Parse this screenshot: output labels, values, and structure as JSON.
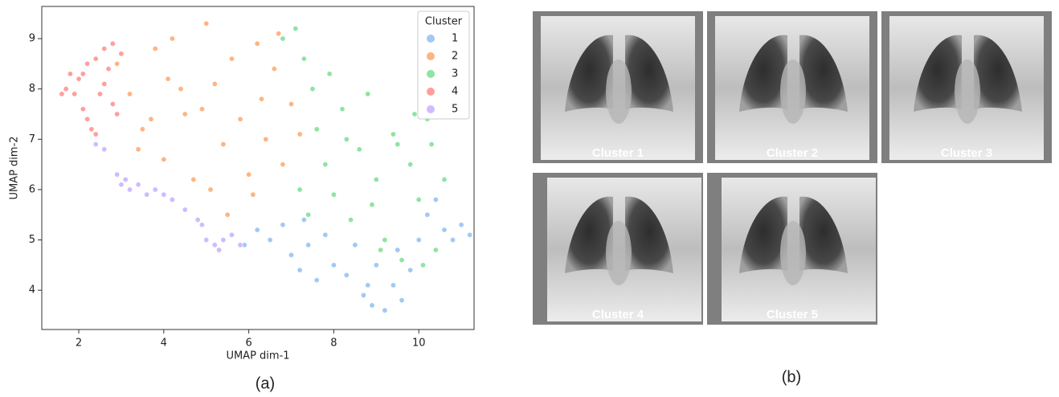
{
  "chart_data": {
    "type": "scatter",
    "xlabel": "UMAP dim-1",
    "ylabel": "UMAP dim-2",
    "xlim": [
      1.13,
      11.3
    ],
    "ylim": [
      3.22,
      9.64
    ],
    "xticks": [
      2,
      4,
      6,
      8,
      10
    ],
    "yticks": [
      4,
      5,
      6,
      7,
      8,
      9
    ],
    "grid": false,
    "legend": "upper right",
    "legend_title": "Cluster",
    "series": [
      {
        "name": "1",
        "color": "#a1c9f4",
        "x": [
          5.6,
          5.9,
          6.2,
          6.5,
          6.8,
          7.0,
          7.2,
          7.4,
          7.6,
          7.8,
          8.0,
          8.3,
          8.5,
          8.7,
          8.9,
          9.0,
          9.2,
          9.4,
          9.6,
          9.8,
          10.0,
          10.2,
          10.4,
          10.6,
          10.8,
          11.0,
          11.2,
          9.5,
          8.8,
          7.3
        ],
        "values": [
          5.1,
          4.9,
          5.2,
          5.0,
          5.3,
          4.7,
          4.4,
          4.9,
          4.2,
          5.1,
          4.5,
          4.3,
          4.9,
          3.9,
          3.7,
          4.5,
          3.6,
          4.1,
          3.8,
          4.4,
          5.0,
          5.5,
          5.8,
          5.2,
          5.0,
          5.3,
          5.1,
          4.8,
          4.1,
          5.4
        ]
      },
      {
        "name": "2",
        "color": "#ffb482",
        "x": [
          2.9,
          3.2,
          3.5,
          3.8,
          4.0,
          4.2,
          4.5,
          4.7,
          5.0,
          5.2,
          5.4,
          5.6,
          5.8,
          6.0,
          6.2,
          6.4,
          6.6,
          6.8,
          7.0,
          7.2,
          3.4,
          4.1,
          4.9,
          5.5,
          6.1,
          6.7,
          5.1,
          4.4,
          3.7,
          6.3
        ],
        "values": [
          8.5,
          7.9,
          7.2,
          8.8,
          6.6,
          9.0,
          7.5,
          6.2,
          9.3,
          8.1,
          6.9,
          8.6,
          7.4,
          6.3,
          8.9,
          7.0,
          8.4,
          6.5,
          7.7,
          7.1,
          6.8,
          8.2,
          7.6,
          5.5,
          5.9,
          9.1,
          6.0,
          8.0,
          7.4,
          7.8
        ]
      },
      {
        "name": "3",
        "color": "#8de5a1",
        "x": [
          6.8,
          7.1,
          7.3,
          7.5,
          7.6,
          7.8,
          8.0,
          8.2,
          8.4,
          8.6,
          8.8,
          9.0,
          9.2,
          9.4,
          9.6,
          9.8,
          10.0,
          10.2,
          10.4,
          10.6,
          7.4,
          7.9,
          8.9,
          9.5,
          10.1,
          8.3,
          7.2,
          9.1,
          9.9,
          10.3
        ],
        "values": [
          9.0,
          9.2,
          8.6,
          8.0,
          7.2,
          6.5,
          5.9,
          7.6,
          5.4,
          6.8,
          7.9,
          6.2,
          5.0,
          7.1,
          4.6,
          6.5,
          5.8,
          7.4,
          4.8,
          6.2,
          5.5,
          8.3,
          5.7,
          6.9,
          4.5,
          7.0,
          6.0,
          4.8,
          7.5,
          6.9
        ]
      },
      {
        "name": "4",
        "color": "#ff9f9b",
        "x": [
          1.7,
          1.8,
          1.9,
          2.0,
          2.1,
          2.2,
          2.3,
          2.4,
          2.5,
          2.6,
          2.7,
          2.8,
          2.9,
          3.0,
          2.2,
          2.4,
          2.6,
          2.8,
          1.6,
          2.1
        ],
        "values": [
          8.0,
          8.3,
          7.9,
          8.2,
          7.6,
          8.5,
          7.2,
          8.6,
          7.9,
          8.8,
          8.4,
          8.9,
          7.5,
          8.7,
          7.4,
          7.1,
          8.1,
          7.7,
          7.9,
          8.3
        ]
      },
      {
        "name": "5",
        "color": "#d0bbff",
        "x": [
          2.4,
          2.6,
          2.9,
          3.0,
          3.2,
          3.4,
          3.6,
          3.8,
          4.0,
          4.2,
          4.5,
          4.8,
          5.0,
          5.2,
          5.4,
          5.6,
          5.8,
          4.9,
          5.3,
          3.1
        ],
        "values": [
          6.9,
          6.8,
          6.3,
          6.1,
          6.0,
          6.1,
          5.9,
          6.0,
          5.9,
          5.8,
          5.6,
          5.4,
          5.0,
          4.9,
          5.0,
          5.1,
          4.9,
          5.3,
          4.8,
          6.2
        ]
      }
    ]
  },
  "captions": {
    "a": "(a)",
    "b": "(b)"
  },
  "panel_b": {
    "tiles": [
      {
        "label": "Cluster 1"
      },
      {
        "label": "Cluster 2"
      },
      {
        "label": "Cluster 3"
      },
      {
        "label": "Cluster 4"
      },
      {
        "label": "Cluster 5"
      }
    ]
  }
}
